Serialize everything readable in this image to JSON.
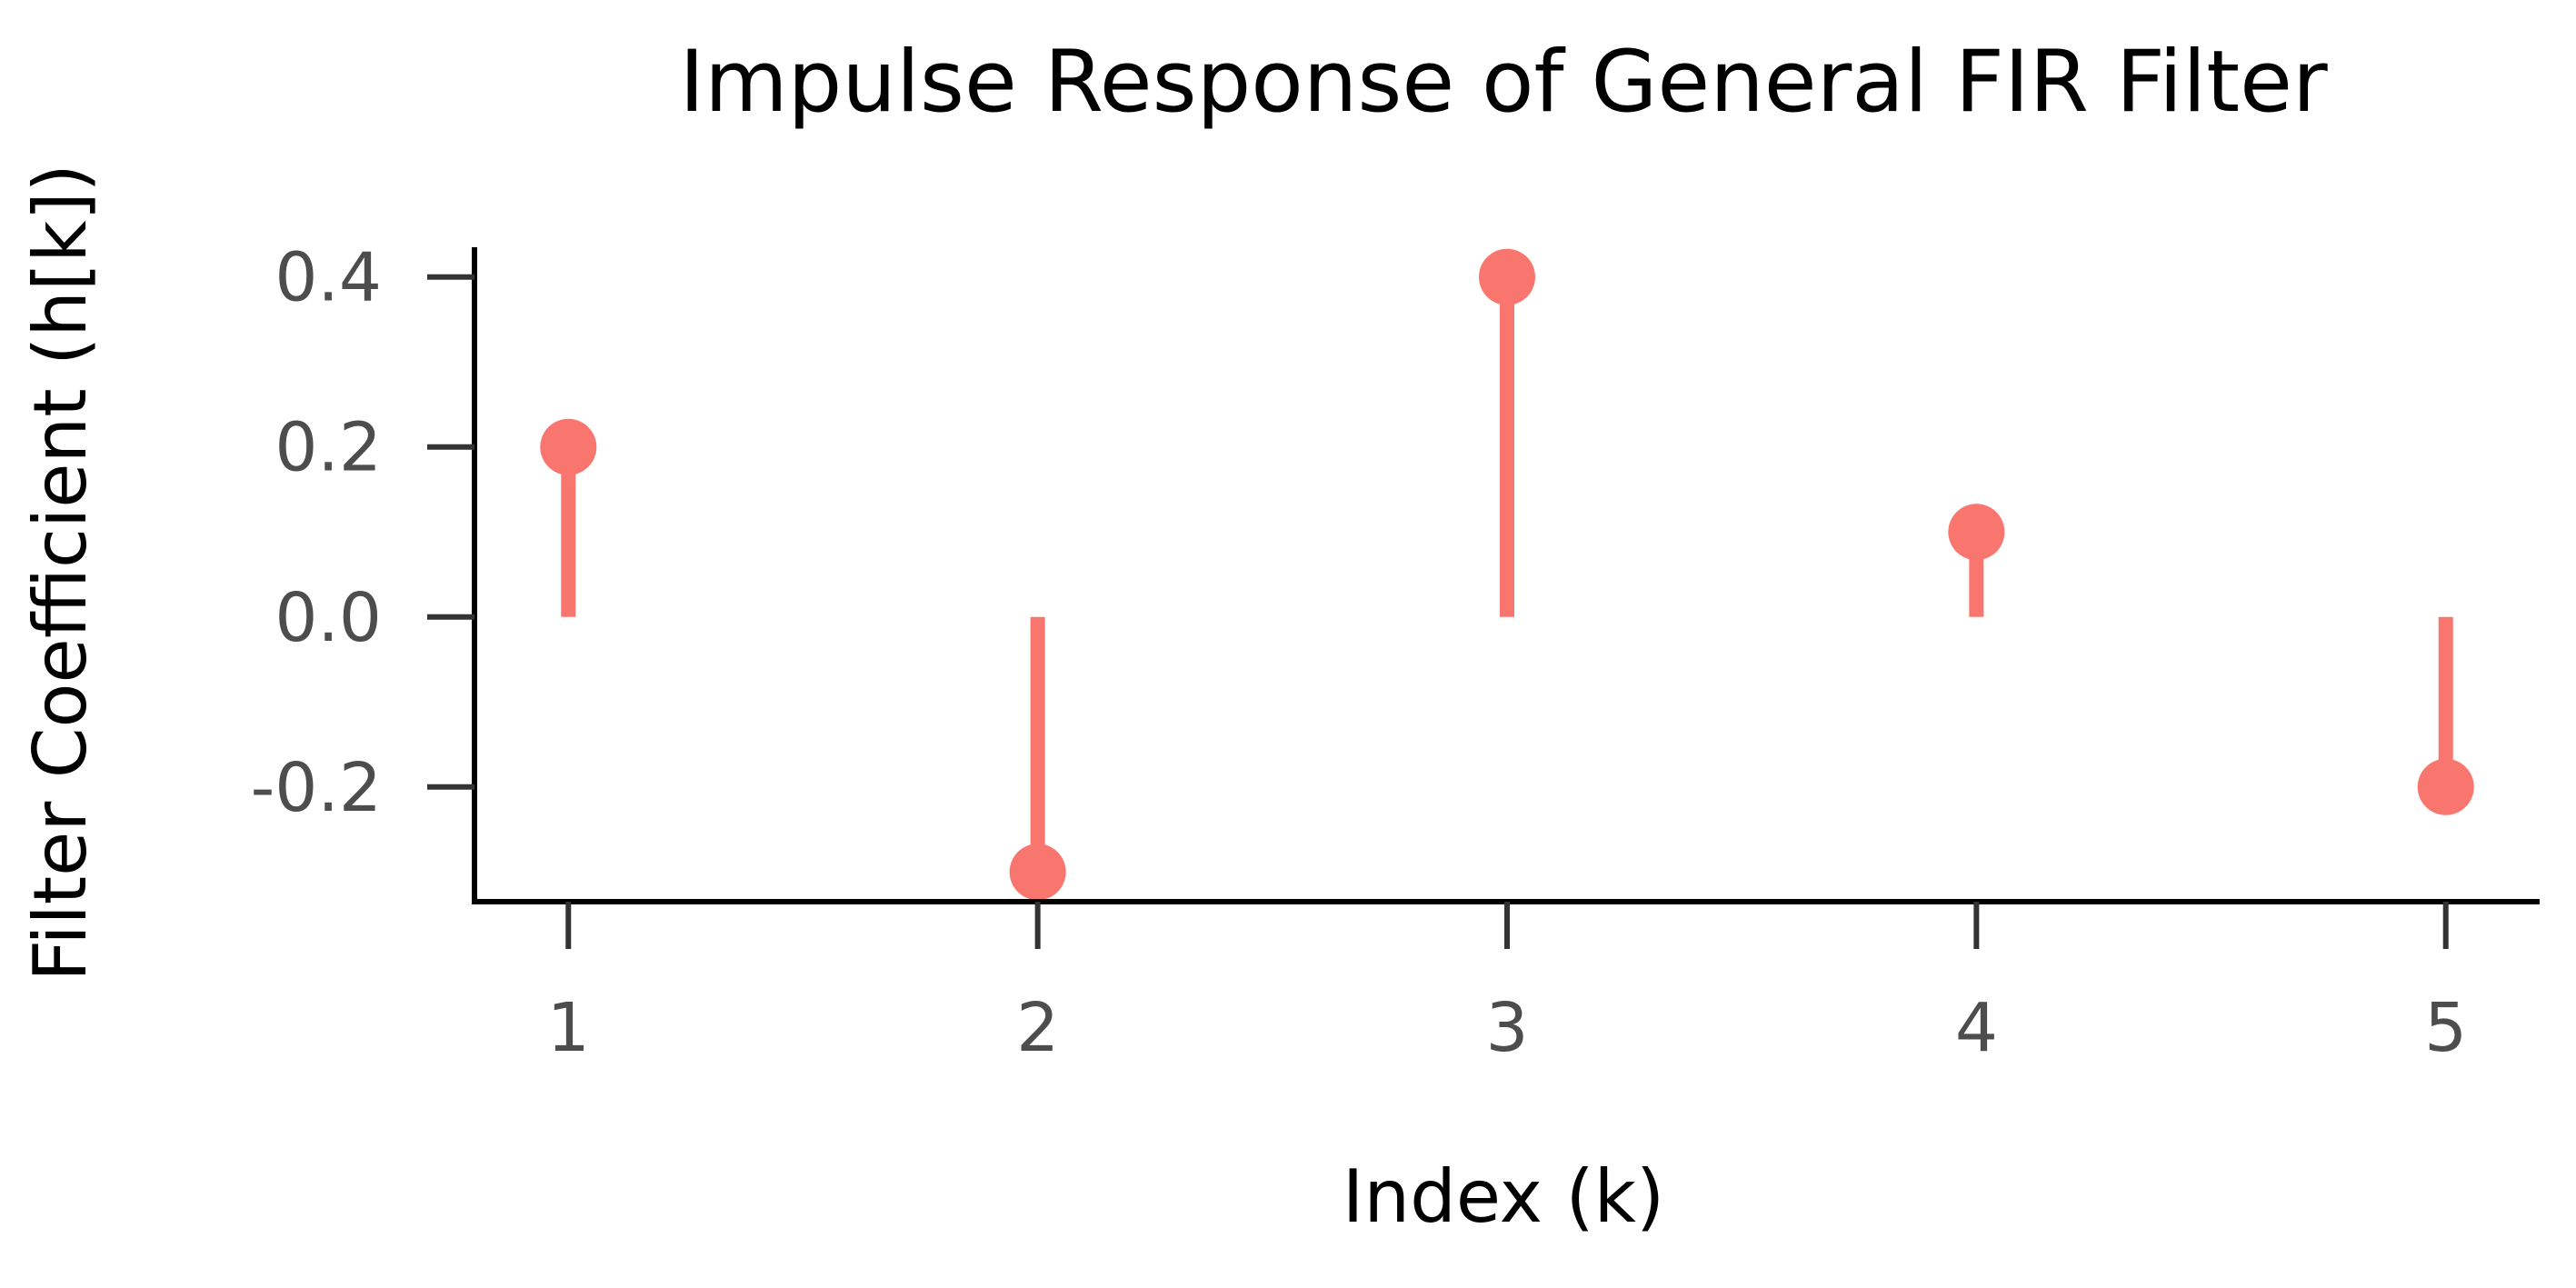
{
  "chart_data": {
    "type": "stem",
    "title": "Impulse Response of General FIR Filter",
    "xlabel": "Index (k)",
    "ylabel": "Filter Coefficient (h[k])",
    "x": [
      1,
      2,
      3,
      4,
      5
    ],
    "values": [
      0.2,
      -0.3,
      0.4,
      0.1,
      -0.2
    ],
    "baseline": 0.0,
    "xlim": [
      0.8,
      5.2
    ],
    "ylim": [
      -0.335,
      0.435
    ],
    "x_ticks": [
      1,
      2,
      3,
      4,
      5
    ],
    "x_tick_labels": [
      "1",
      "2",
      "3",
      "4",
      "5"
    ],
    "y_ticks": [
      0.4,
      0.2,
      0.0,
      -0.2
    ],
    "y_tick_labels": [
      "0.4",
      "0.2",
      "0.0",
      "-0.2"
    ],
    "grid": false,
    "legend": "none",
    "colors": {
      "stem": "#F8766D",
      "axis": "#000000",
      "tick": "#333333",
      "tick_label": "#4d4d4d"
    }
  }
}
